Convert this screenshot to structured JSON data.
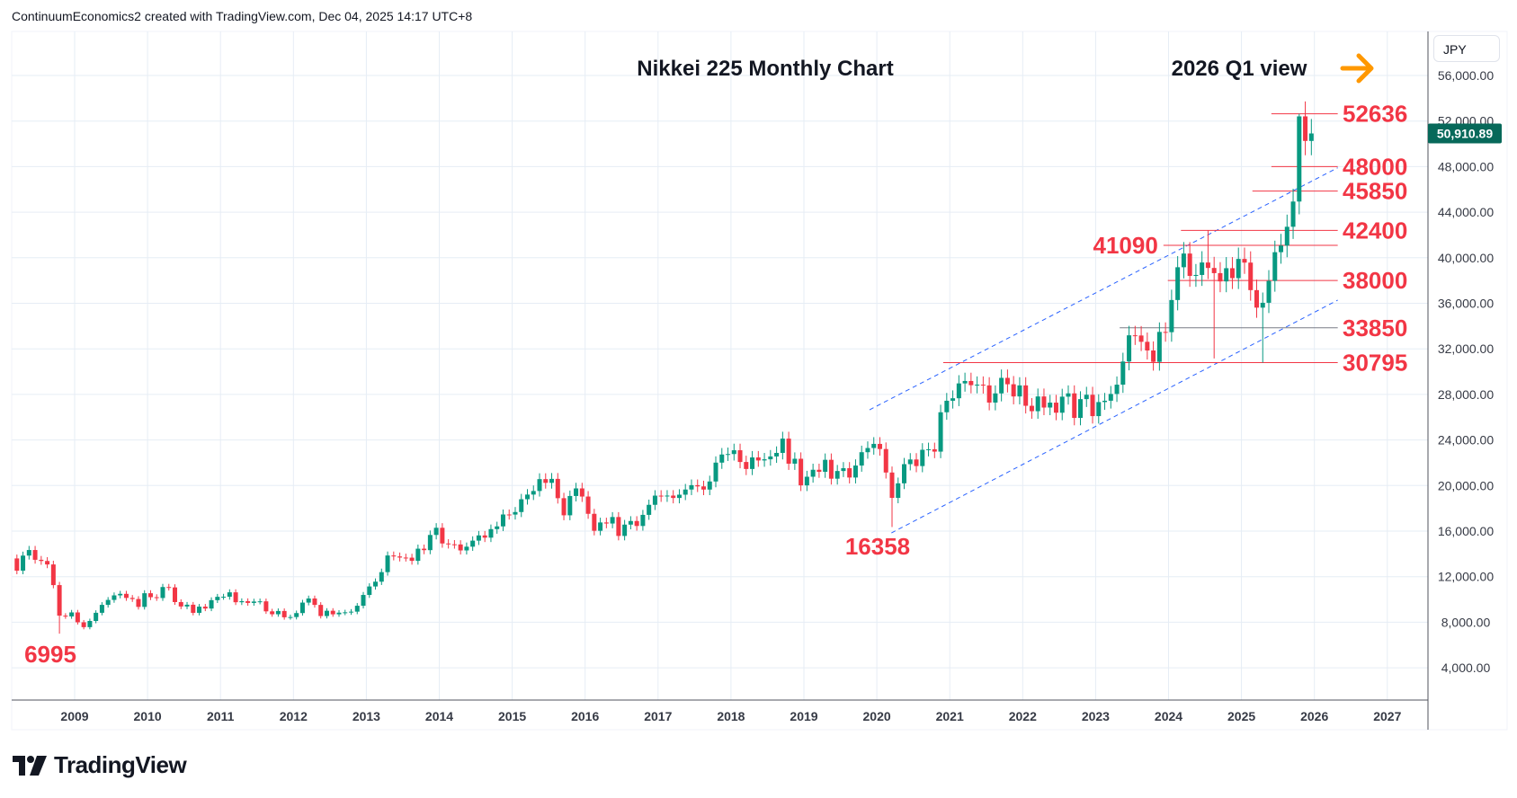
{
  "header": {
    "attribution": "ContinuumEconomics2 created with TradingView.com, Dec 04, 2025 14:17 UTC+8"
  },
  "currency": "JPY",
  "brand": "TradingView",
  "current_price_label": "50,910.89",
  "colors": {
    "up": "#089981",
    "down": "#f23645",
    "level": "#f23645",
    "channel": "#2962ff",
    "arrow": "#ff9800",
    "price_tag": "#07695a"
  },
  "chart_data": {
    "type": "candlestick",
    "title": "Nikkei 225 Monthly Chart",
    "subtitle": "2026 Q1 view",
    "interval": "monthly",
    "start": "2008-03",
    "first_open": 13600,
    "closes": [
      12526,
      13850,
      14339,
      13481,
      13377,
      13073,
      11260,
      8577,
      8512,
      8860,
      7994,
      7568,
      8110,
      8828,
      9523,
      9958,
      10357,
      10493,
      10133,
      10035,
      9346,
      10546,
      10198,
      10126,
      11090,
      11057,
      9769,
      9383,
      9537,
      8824,
      9369,
      9202,
      9937,
      10229,
      10238,
      10624,
      9755,
      9850,
      9694,
      9816,
      9833,
      8955,
      8700,
      8988,
      8434,
      8455,
      8803,
      9723,
      10084,
      9521,
      8543,
      9007,
      8695,
      8840,
      8870,
      8928,
      9446,
      10395,
      11139,
      11559,
      12398,
      13861,
      13775,
      13677,
      13668,
      13389,
      14456,
      14328,
      15662,
      16291,
      14915,
      14841,
      14828,
      14304,
      14632,
      15162,
      15621,
      15425,
      16174,
      16414,
      17460,
      17451,
      17674,
      18798,
      19207,
      19520,
      20563,
      20236,
      20585,
      18890,
      17388,
      19083,
      19747,
      19034,
      17518,
      16027,
      16759,
      16666,
      17235,
      15576,
      16569,
      16887,
      16450,
      17425,
      18308,
      19114,
      19041,
      19119,
      18909,
      19197,
      19651,
      20033,
      19925,
      19646,
      20356,
      22012,
      22725,
      22765,
      23098,
      22068,
      21454,
      22468,
      22202,
      22305,
      22554,
      22865,
      24120,
      21920,
      22351,
      20015,
      20773,
      21385,
      21206,
      22259,
      20601,
      21276,
      21521,
      20704,
      21756,
      22927,
      23294,
      23657,
      23205,
      21143,
      18917,
      20194,
      21878,
      22288,
      21710,
      23140,
      23185,
      22977,
      26434,
      27444,
      27663,
      28966,
      29179,
      28813,
      28860,
      28792,
      27284,
      28090,
      29453,
      28893,
      27822,
      28792,
      27002,
      26527,
      27821,
      26848,
      27280,
      26393,
      27802,
      28092,
      25937,
      27587,
      27969,
      26095,
      27327,
      27446,
      28041,
      28856,
      30888,
      33189,
      33172,
      32619,
      31858,
      30859,
      33487,
      33464,
      36287,
      39166,
      40369,
      38406,
      38488,
      39583,
      39102,
      38648,
      37920,
      39081,
      38208,
      39895,
      39572,
      37156,
      35618,
      36045,
      37965,
      40487,
      41069,
      42718,
      44933,
      52411,
      50254,
      50911
    ],
    "extremes": [
      {
        "month": "2008-10",
        "low": 6995
      },
      {
        "month": "2020-03",
        "low": 16358
      },
      {
        "month": "2024-07",
        "high": 42400
      },
      {
        "month": "2024-08",
        "low": 31156
      },
      {
        "month": "2025-04",
        "low": 30795
      },
      {
        "month": "2025-10",
        "high": 52636
      }
    ],
    "y_ticks": [
      4000,
      8000,
      12000,
      16000,
      20000,
      24000,
      28000,
      32000,
      36000,
      40000,
      44000,
      48000,
      52000,
      56000
    ],
    "y_tick_labels": [
      "4,000.00",
      "8,000.00",
      "12,000.00",
      "16,000.00",
      "20,000.00",
      "24,000.00",
      "28,000.00",
      "32,000.00",
      "36,000.00",
      "40,000.00",
      "44,000.00",
      "48,000.00",
      "52,000.00",
      "56,000.00"
    ],
    "x_ticks": [
      "2009",
      "2010",
      "2011",
      "2012",
      "2013",
      "2014",
      "2015",
      "2016",
      "2017",
      "2018",
      "2019",
      "2020",
      "2021",
      "2022",
      "2023",
      "2024",
      "2025",
      "2026",
      "2027"
    ],
    "levels": [
      {
        "label": "52636",
        "value": 52636,
        "from": 2025.41,
        "side": "right"
      },
      {
        "label": "48000",
        "value": 48000,
        "from": 2025.41,
        "side": "right"
      },
      {
        "label": "45850",
        "value": 45850,
        "from": 2025.15,
        "side": "right"
      },
      {
        "label": "42400",
        "value": 42400,
        "from": 2024.17,
        "side": "right"
      },
      {
        "label": "41090",
        "value": 41090,
        "from": 2023.93,
        "side": "left"
      },
      {
        "label": "38000",
        "value": 38000,
        "from": 2023.99,
        "side": "right"
      },
      {
        "label": "33850",
        "value": 33850,
        "from": 2023.33,
        "side": "right",
        "line": "#787b86"
      },
      {
        "label": "30795",
        "value": 30795,
        "from": 2020.91,
        "side": "right"
      }
    ],
    "annotations": [
      {
        "label": "16358",
        "x": 2020.2,
        "y": 16358
      },
      {
        "label": "6995",
        "x": 2008.5,
        "y": 6995
      }
    ],
    "channel": [
      {
        "from": [
          2019.9,
          26650
        ],
        "to": [
          2026.32,
          47900
        ]
      },
      {
        "from": [
          2020.2,
          15840
        ],
        "to": [
          2026.32,
          36280
        ]
      }
    ],
    "last_price": 50910.89
  }
}
